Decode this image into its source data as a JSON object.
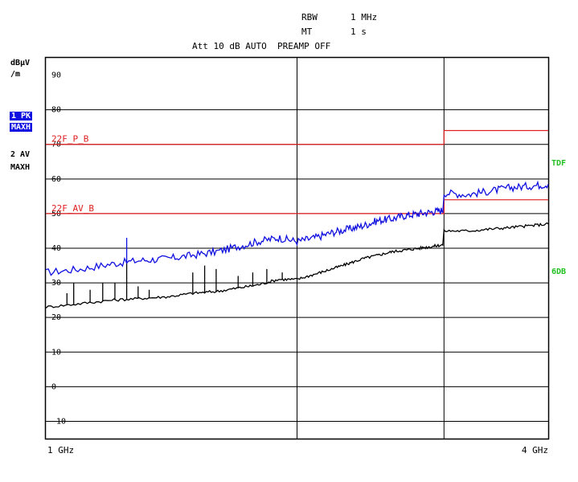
{
  "header": {
    "rbw_label": "RBW",
    "rbw_value": "1 MHz",
    "mt_label": "MT",
    "mt_value": "1 s",
    "att_line": "Att 10 dB AUTO  PREAMP OFF"
  },
  "left_panel": {
    "unit_line1": "dBµV",
    "unit_line2": "/m",
    "trace1_label": "1 PK",
    "trace1_mode": "MAXH",
    "trace2_label": "2 AV",
    "trace2_mode": "MAXH"
  },
  "right_panel": {
    "tdf_label": "TDF",
    "db_label": "6DB"
  },
  "colors": {
    "peak_trace": "#1010e0",
    "avg_trace": "#000000",
    "limit_line": "#e02020",
    "right_labels": "#20c020",
    "highlight": "#1010e0"
  },
  "chart_data": {
    "type": "line",
    "x_scale": "log",
    "xlim_ghz": [
      1,
      4
    ],
    "ylim": [
      -15,
      95
    ],
    "y_ticks": [
      90,
      80,
      70,
      60,
      50,
      40,
      30,
      20,
      10,
      0,
      -10
    ],
    "x_tick_labels": [
      "1 GHz",
      "4 GHz"
    ],
    "vertical_markers_ghz": [
      2.0,
      3.0
    ],
    "limit_lines": [
      {
        "name": "22F_P_B",
        "segments": [
          {
            "x": [
              1,
              3
            ],
            "y": 70
          },
          {
            "x": [
              3,
              4
            ],
            "y": 74
          }
        ]
      },
      {
        "name": "22F_AV_B",
        "segments": [
          {
            "x": [
              1,
              3
            ],
            "y": 50
          },
          {
            "x": [
              3,
              4
            ],
            "y": 54
          }
        ]
      }
    ],
    "series": [
      {
        "name": "1 PK",
        "x_ghz": [
          1.0,
          1.1,
          1.2,
          1.3,
          1.4,
          1.5,
          1.6,
          1.7,
          1.8,
          1.9,
          2.0,
          2.1,
          2.2,
          2.3,
          2.4,
          2.5,
          2.6,
          2.7,
          2.8,
          2.9,
          2.99,
          3.0,
          3.2,
          3.4,
          3.6,
          3.8,
          4.0
        ],
        "y": [
          33,
          34,
          35.5,
          36.5,
          37,
          38,
          39,
          40.5,
          42,
          43,
          42,
          43,
          44.5,
          45.5,
          46.5,
          48,
          48.5,
          49.5,
          50,
          50.5,
          51,
          56,
          55.5,
          56.5,
          57.5,
          58,
          58.5
        ]
      },
      {
        "name": "2 AV",
        "x_ghz": [
          1.0,
          1.1,
          1.2,
          1.3,
          1.4,
          1.5,
          1.6,
          1.7,
          1.8,
          1.9,
          2.0,
          2.1,
          2.2,
          2.3,
          2.4,
          2.5,
          2.6,
          2.7,
          2.8,
          2.9,
          2.99,
          3.0,
          3.2,
          3.4,
          3.6,
          3.8,
          4.0
        ],
        "y": [
          23,
          24,
          25,
          25.5,
          26,
          27,
          27.5,
          28.5,
          29.5,
          31,
          31,
          32.5,
          34,
          35.5,
          37,
          38,
          39,
          39.5,
          40,
          40.5,
          41,
          45,
          45,
          45.5,
          46,
          46.5,
          47
        ]
      }
    ],
    "peak_spikes": [
      {
        "x": 1.25,
        "y": 43
      }
    ],
    "avg_spikes": [
      {
        "x": 1.06,
        "y": 27
      },
      {
        "x": 1.08,
        "y": 30
      },
      {
        "x": 1.13,
        "y": 28
      },
      {
        "x": 1.17,
        "y": 30
      },
      {
        "x": 1.21,
        "y": 30
      },
      {
        "x": 1.25,
        "y": 36
      },
      {
        "x": 1.29,
        "y": 29
      },
      {
        "x": 1.33,
        "y": 28
      },
      {
        "x": 1.5,
        "y": 33
      },
      {
        "x": 1.55,
        "y": 35
      },
      {
        "x": 1.6,
        "y": 34
      },
      {
        "x": 1.7,
        "y": 32
      },
      {
        "x": 1.77,
        "y": 33
      },
      {
        "x": 1.84,
        "y": 34
      },
      {
        "x": 1.92,
        "y": 33
      }
    ]
  }
}
